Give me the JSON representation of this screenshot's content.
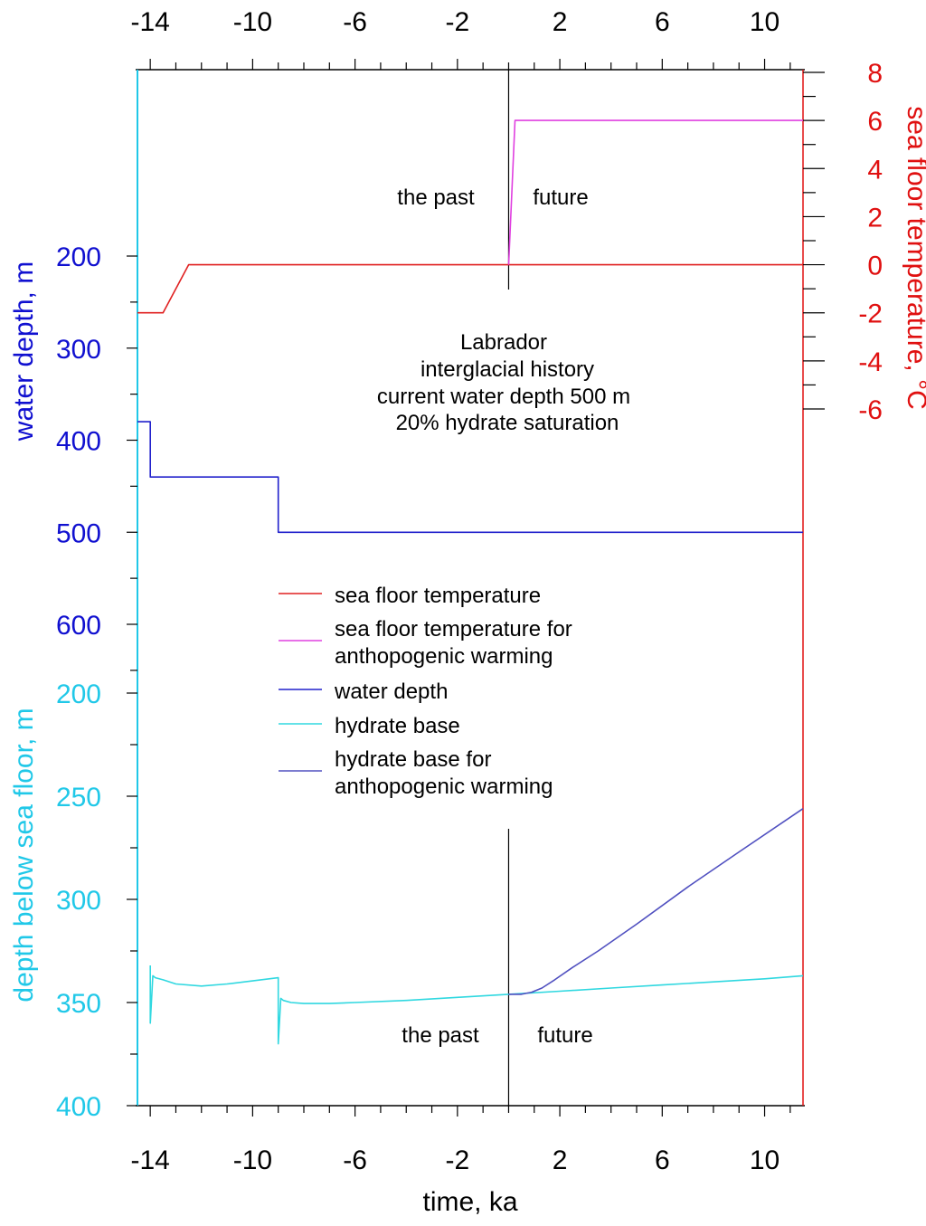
{
  "chart_data": {
    "type": "line",
    "colors": {
      "sea_floor_temperature": "#e02020",
      "anthropogenic_temperature": "#e040e0",
      "water_depth": "#2020cc",
      "hydrate_base": "#30d8e0",
      "hydrate_anthropogenic": "#5050c0",
      "water_depth_axis": "#1010d0",
      "depth_below_axis": "#20c8e8",
      "temperature_axis": "#e01010",
      "black": "#000000"
    },
    "x_axis": {
      "label": "time, ka",
      "range": [
        -14.5,
        11.5
      ],
      "ticks": [
        -14,
        -10,
        -6,
        -2,
        2,
        6,
        10
      ],
      "tick_labels": [
        "-14",
        "-10",
        "-6",
        "-2",
        "2",
        "6",
        "10"
      ]
    },
    "water_depth_axis": {
      "label": "water depth, m",
      "range": [
        170,
        670
      ],
      "ticks": [
        200,
        300,
        400,
        500,
        600
      ],
      "tick_labels": [
        "200",
        "300",
        "400",
        "500",
        "600"
      ]
    },
    "depth_below_axis": {
      "label": "depth below sea floor, m",
      "range": [
        200,
        400
      ],
      "ticks": [
        200,
        250,
        300,
        350,
        400
      ],
      "tick_labels": [
        "200",
        "250",
        "300",
        "350",
        "400"
      ]
    },
    "temperature_axis": {
      "label": "sea floor temperature, °C",
      "range": [
        -7,
        8
      ],
      "ticks": [
        -6,
        -4,
        -2,
        0,
        2,
        4,
        6,
        8
      ],
      "tick_labels": [
        "-6",
        "-4",
        "-2",
        "0",
        "2",
        "4",
        "6",
        "8"
      ]
    },
    "annotations": {
      "top_past": "the past",
      "top_future": "future",
      "bottom_past": "the past",
      "bottom_future": "future",
      "info": [
        "Labrador",
        "interglacial history",
        "current water depth 500 m",
        "20% hydrate saturation"
      ]
    },
    "series": [
      {
        "name": "sea floor temperature",
        "axis": "temperature",
        "x": [
          -14.5,
          -13.5,
          -12.5,
          11.5
        ],
        "y": [
          -2,
          -2,
          0,
          0
        ]
      },
      {
        "name": "sea floor temperature for anthopogenic warming",
        "axis": "temperature",
        "x": [
          0,
          0.25,
          11.5
        ],
        "y": [
          0,
          6,
          6
        ]
      },
      {
        "name": "water depth",
        "axis": "water_depth",
        "x": [
          -14.5,
          -14,
          -14,
          -9,
          -9,
          11.5
        ],
        "y": [
          380,
          380,
          440,
          440,
          500,
          500
        ]
      },
      {
        "name": "hydrate base",
        "axis": "depth_below",
        "x": [
          -14.5,
          -14,
          -14,
          -13.9,
          -13.8,
          -13.5,
          -13,
          -12,
          -11,
          -10,
          -9,
          -9,
          -8.9,
          -8.8,
          -8.5,
          -8,
          -7,
          -6,
          -4,
          -2,
          0,
          2,
          4,
          6,
          8,
          10,
          11.5
        ],
        "y": [
          null,
          332,
          360,
          337,
          338,
          339,
          341,
          342,
          341,
          339.5,
          338,
          370,
          348,
          349,
          350,
          350.5,
          350.5,
          350,
          349,
          347.5,
          346,
          344.5,
          343,
          341.5,
          340,
          338.5,
          337
        ]
      },
      {
        "name": "hydrate base for anthopogenic warming",
        "axis": "depth_below",
        "x": [
          0,
          0.5,
          0.9,
          1.3,
          1.8,
          2.5,
          3.5,
          5,
          7,
          9,
          11.5
        ],
        "y": [
          346,
          346,
          345,
          343,
          339,
          333,
          325,
          312,
          294,
          277,
          256
        ]
      }
    ]
  }
}
